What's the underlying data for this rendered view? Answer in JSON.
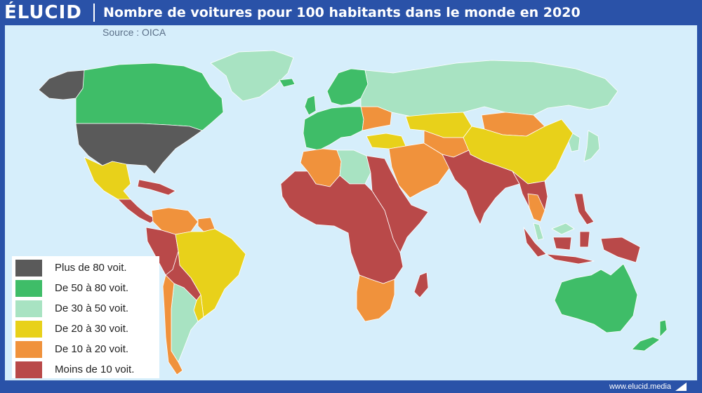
{
  "header": {
    "logo": "ÉLUCID",
    "title": "Nombre de voitures pour 100 habitants dans le monde en 2020"
  },
  "source": "Source : OICA",
  "legend": {
    "items": [
      {
        "label": "Plus de 80 voit.",
        "color": "#5a5a5a"
      },
      {
        "label": "De 50 à 80 voit.",
        "color": "#3fbd68"
      },
      {
        "label": "De 30 à 50 voit.",
        "color": "#a8e3c2"
      },
      {
        "label": "De 20 à 30 voit.",
        "color": "#e8d11a"
      },
      {
        "label": "De 10 à 20 voit.",
        "color": "#f0923c"
      },
      {
        "label": "Moins de 10 voit.",
        "color": "#b94949"
      }
    ]
  },
  "map": {
    "ocean_color": "#d6eefb",
    "regions": [
      {
        "id": "alaska",
        "class": 0
      },
      {
        "id": "canada",
        "class": 1
      },
      {
        "id": "greenland",
        "class": 2
      },
      {
        "id": "usa",
        "class": 0
      },
      {
        "id": "mexico",
        "class": 3
      },
      {
        "id": "central-america",
        "class": 5
      },
      {
        "id": "caribbean",
        "class": 5
      },
      {
        "id": "colombia-venezuela",
        "class": 4
      },
      {
        "id": "guyanas",
        "class": 4
      },
      {
        "id": "andes",
        "class": 5
      },
      {
        "id": "brazil",
        "class": 3
      },
      {
        "id": "bolivia-paraguay",
        "class": 5
      },
      {
        "id": "uruguay",
        "class": 3
      },
      {
        "id": "argentina",
        "class": 2
      },
      {
        "id": "chile",
        "class": 4
      },
      {
        "id": "western-europe",
        "class": 1
      },
      {
        "id": "scandinavia",
        "class": 1
      },
      {
        "id": "iceland",
        "class": 1
      },
      {
        "id": "uk",
        "class": 1
      },
      {
        "id": "ukraine",
        "class": 4
      },
      {
        "id": "russia",
        "class": 2
      },
      {
        "id": "kazakhstan",
        "class": 3
      },
      {
        "id": "turkey",
        "class": 3
      },
      {
        "id": "middle-east",
        "class": 4
      },
      {
        "id": "central-asia",
        "class": 4
      },
      {
        "id": "mongolia",
        "class": 4
      },
      {
        "id": "china",
        "class": 3
      },
      {
        "id": "korea",
        "class": 2
      },
      {
        "id": "japan",
        "class": 2
      },
      {
        "id": "south-asia",
        "class": 5
      },
      {
        "id": "southeast-asia",
        "class": 5
      },
      {
        "id": "thailand",
        "class": 4
      },
      {
        "id": "malaysia",
        "class": 2
      },
      {
        "id": "indonesia",
        "class": 5
      },
      {
        "id": "philippines",
        "class": 5
      },
      {
        "id": "north-africa-west",
        "class": 4
      },
      {
        "id": "libya",
        "class": 2
      },
      {
        "id": "egypt-east-africa",
        "class": 5
      },
      {
        "id": "sub-saharan-africa",
        "class": 5
      },
      {
        "id": "southern-africa",
        "class": 4
      },
      {
        "id": "madagascar",
        "class": 5
      },
      {
        "id": "australia",
        "class": 1
      },
      {
        "id": "new-zealand",
        "class": 1
      }
    ]
  },
  "footer": {
    "url": "www.elucid.media"
  }
}
